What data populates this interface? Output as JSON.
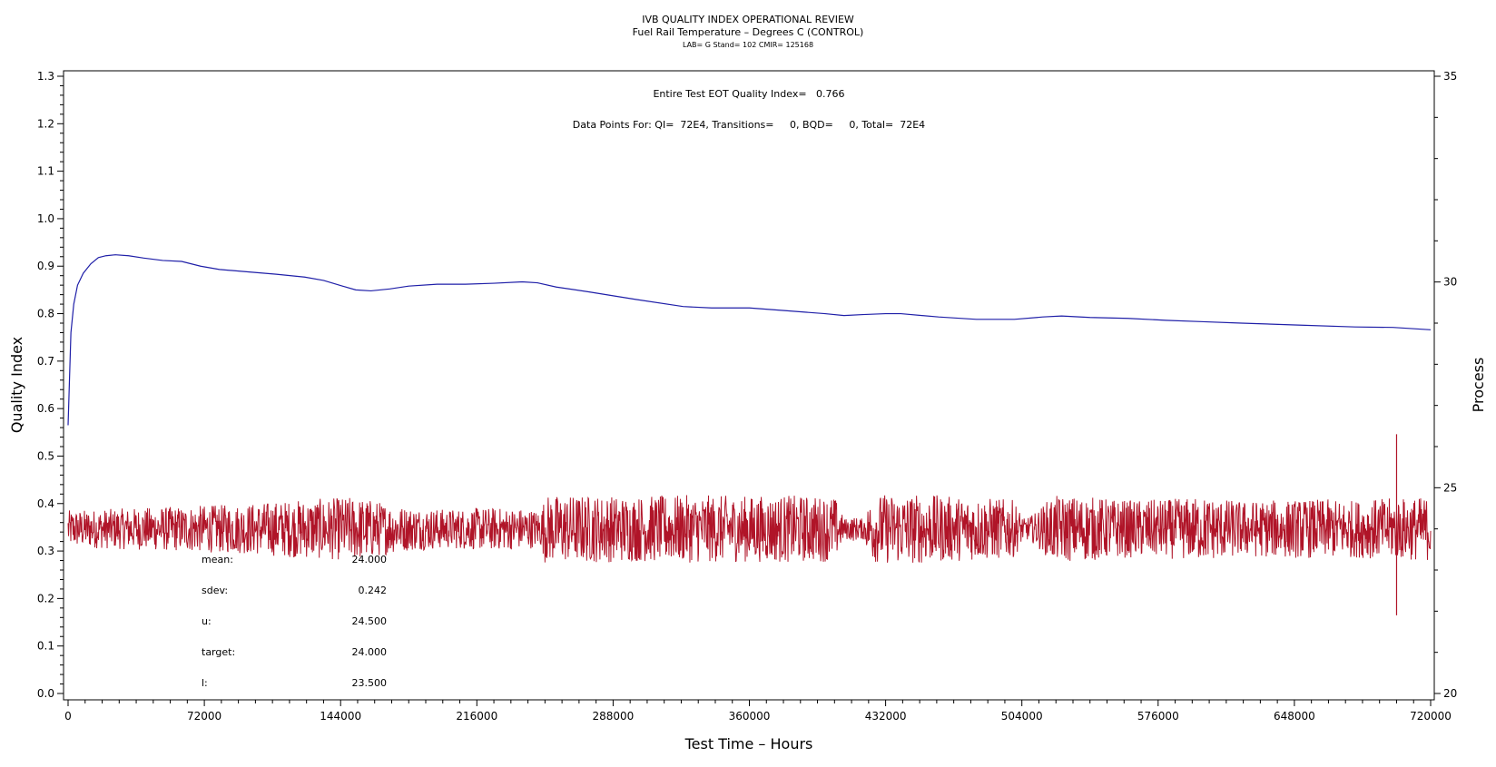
{
  "chart_data": {
    "type": "line",
    "title": "IVB QUALITY INDEX OPERATIONAL REVIEW",
    "subtitle": "Fuel Rail Temperature – Degrees C (CONTROL)",
    "subsubtitle": "LAB= G Stand= 102 CMIR= 125168",
    "xlabel": "Test Time – Hours",
    "ylabel": "Quality Index",
    "y2label": "Process",
    "xlim": [
      0,
      720000
    ],
    "ylim": [
      0,
      1.3
    ],
    "y2lim": [
      20,
      35
    ],
    "xticks": [
      "0",
      "72000",
      "144000",
      "216000",
      "288000",
      "360000",
      "432000",
      "504000",
      "576000",
      "648000",
      "720000"
    ],
    "yticks": [
      "0.0",
      "0.1",
      "0.2",
      "0.3",
      "0.4",
      "0.5",
      "0.6",
      "0.7",
      "0.8",
      "0.9",
      "1.0",
      "1.1",
      "1.2",
      "1.3"
    ],
    "y2ticks": [
      "20",
      "25",
      "30",
      "35"
    ],
    "annotations": {
      "qi_text": "Entire Test EOT Quality Index=   0.766",
      "points_text": "Data Points For: QI=  72E4, Transitions=     0, BQD=     0, Total=  72E4"
    },
    "stats": [
      {
        "label": "mean:",
        "value": "24.000"
      },
      {
        "label": "sdev:",
        "value": "0.242"
      },
      {
        "label": "u:",
        "value": "24.500"
      },
      {
        "label": "target:",
        "value": "24.000"
      },
      {
        "label": "l:",
        "value": "23.500"
      }
    ],
    "series": [
      {
        "axis": "left",
        "color": "#1f1fa8",
        "x": [
          0,
          1500,
          3000,
          5000,
          8000,
          12000,
          16000,
          20000,
          25000,
          32000,
          40000,
          50000,
          60000,
          70000,
          80000,
          95000,
          110000,
          125000,
          135000,
          145000,
          152000,
          160000,
          170000,
          180000,
          195000,
          210000,
          225000,
          240000,
          248000,
          258000,
          275000,
          300000,
          325000,
          340000,
          360000,
          380000,
          400000,
          410000,
          420000,
          432000,
          440000,
          460000,
          480000,
          500000,
          515000,
          525000,
          540000,
          560000,
          580000,
          600000,
          620000,
          650000,
          680000,
          700000,
          720000
        ],
        "y": [
          0.565,
          0.76,
          0.82,
          0.86,
          0.885,
          0.905,
          0.918,
          0.922,
          0.924,
          0.922,
          0.917,
          0.912,
          0.91,
          0.9,
          0.893,
          0.888,
          0.883,
          0.877,
          0.87,
          0.858,
          0.85,
          0.848,
          0.852,
          0.858,
          0.862,
          0.862,
          0.864,
          0.867,
          0.865,
          0.856,
          0.846,
          0.83,
          0.815,
          0.812,
          0.812,
          0.806,
          0.8,
          0.796,
          0.798,
          0.8,
          0.8,
          0.793,
          0.788,
          0.788,
          0.793,
          0.795,
          0.792,
          0.79,
          0.786,
          0.783,
          0.78,
          0.776,
          0.772,
          0.771,
          0.766
        ]
      },
      {
        "axis": "right",
        "color": "#b01428",
        "mean": 24.0,
        "envelope_x": [
          0,
          30000,
          60000,
          90000,
          120000,
          140000,
          150000,
          160000,
          175000,
          200000,
          220000,
          240000,
          250000,
          252000,
          280000,
          300000,
          320000,
          340000,
          360000,
          380000,
          395000,
          400000,
          405000,
          410000,
          415000,
          420000,
          425000,
          430000,
          450000,
          470000,
          490000,
          500000,
          505000,
          510000,
          520000,
          530000,
          540000,
          560000,
          580000,
          600000,
          620000,
          640000,
          660000,
          680000,
          700000,
          720000
        ],
        "envelope_amp": [
          0.45,
          0.5,
          0.55,
          0.6,
          0.7,
          0.75,
          0.78,
          0.72,
          0.55,
          0.48,
          0.52,
          0.5,
          0.45,
          0.82,
          0.82,
          0.8,
          0.82,
          0.82,
          0.8,
          0.82,
          0.8,
          0.8,
          0.8,
          0.25,
          0.3,
          0.25,
          0.8,
          0.85,
          0.85,
          0.78,
          0.75,
          0.7,
          0.25,
          0.35,
          0.8,
          0.8,
          0.78,
          0.7,
          0.72,
          0.78,
          0.68,
          0.7,
          0.72,
          0.7,
          0.75,
          0.78
        ],
        "spike": {
          "x": 702000,
          "top": 26.3,
          "bottom": 21.9
        }
      }
    ]
  }
}
